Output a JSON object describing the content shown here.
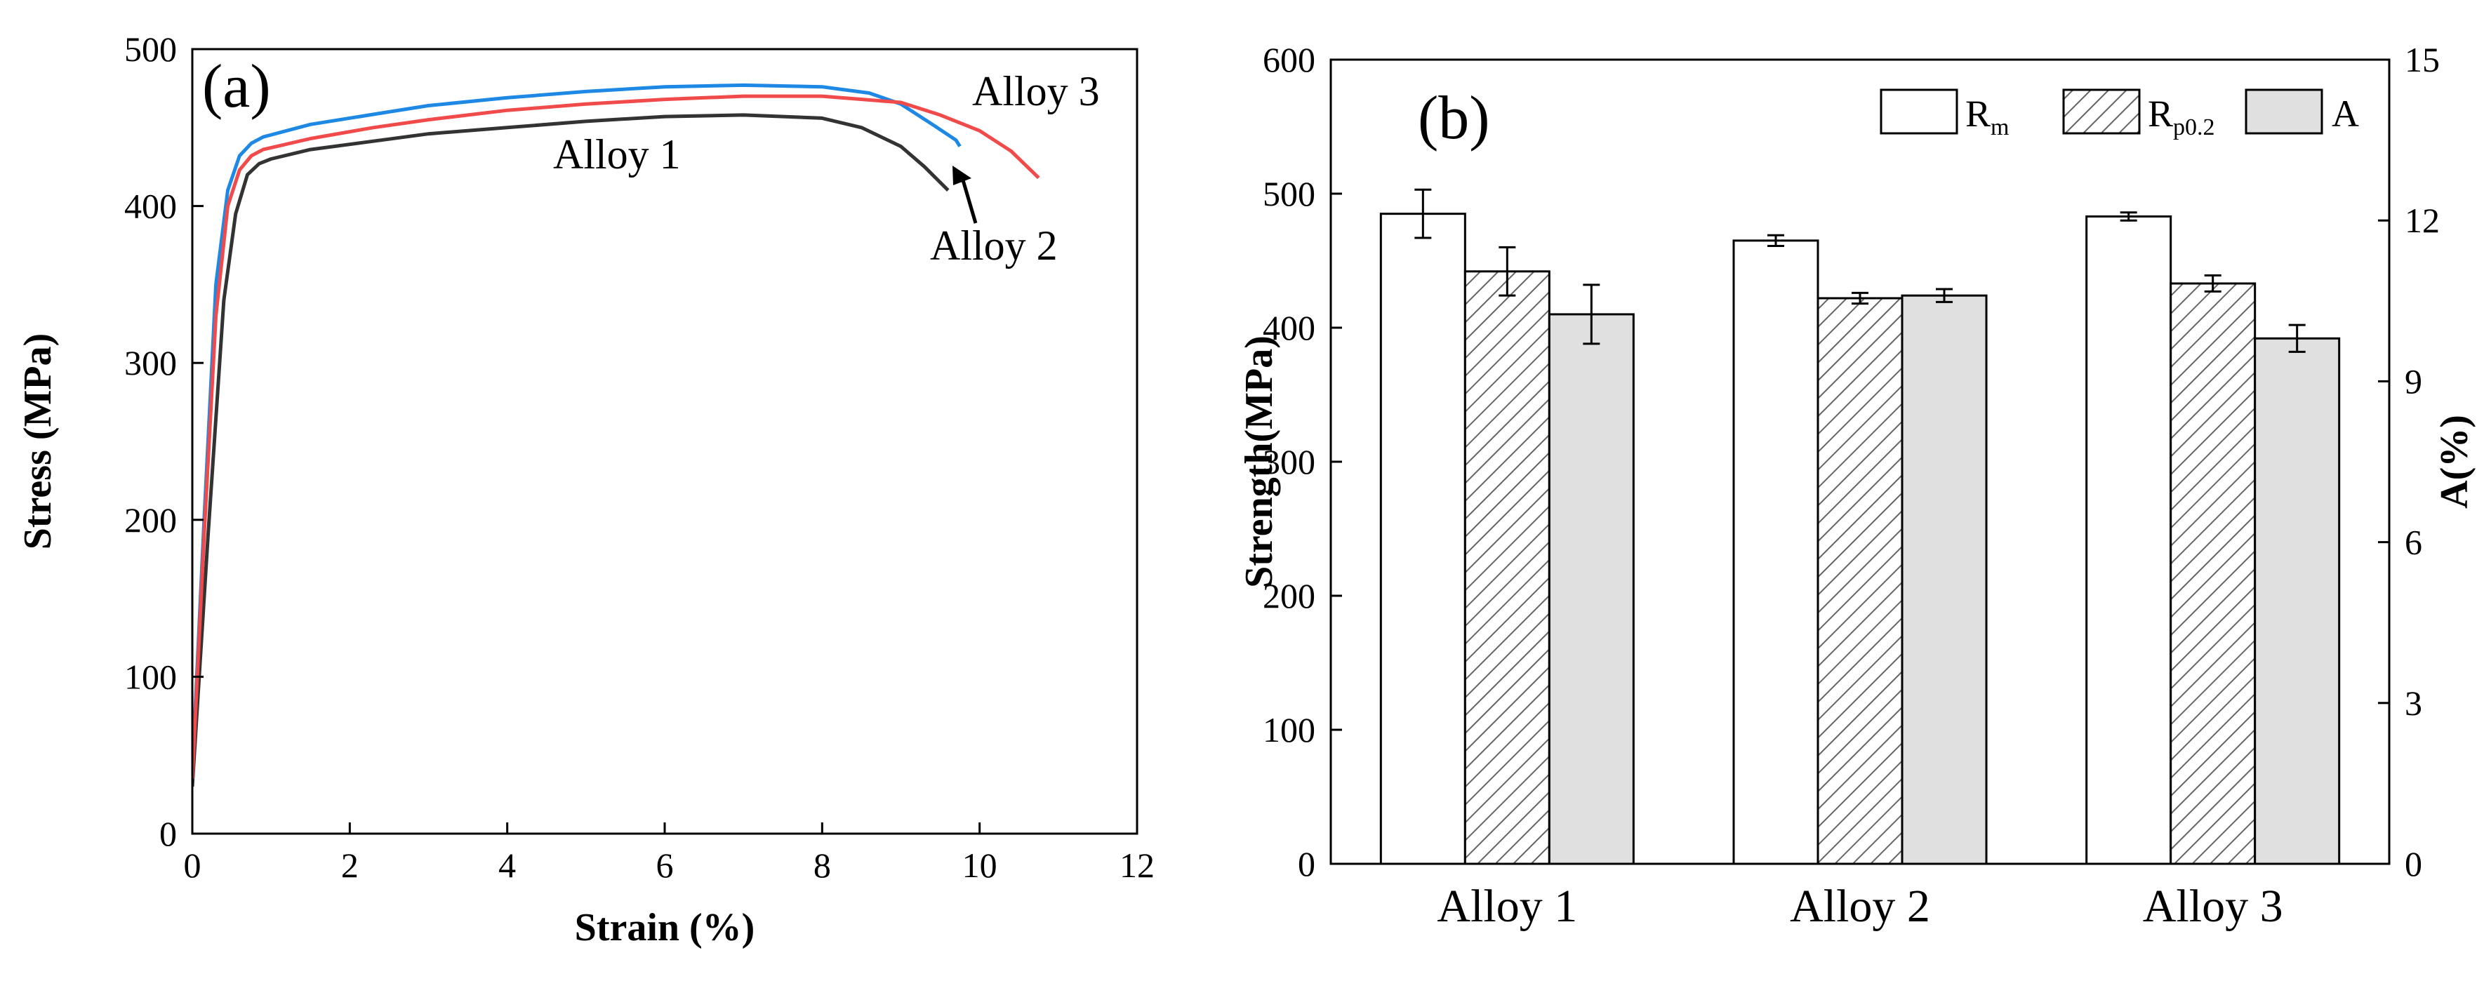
{
  "chart_data": [
    {
      "type": "line",
      "panel_label": "(a)",
      "xlabel": "Strain (%)",
      "ylabel": "Stress (MPa)",
      "xlim": [
        0,
        12
      ],
      "ylim": [
        0,
        500
      ],
      "xticks": [
        "0",
        "2",
        "4",
        "6",
        "8",
        "10",
        "12"
      ],
      "yticks": [
        "0",
        "100",
        "200",
        "300",
        "400",
        "500"
      ],
      "series": [
        {
          "name": "Alloy 1",
          "color": "#333333",
          "x": [
            0.0,
            0.2,
            0.4,
            0.55,
            0.7,
            0.85,
            1.0,
            1.5,
            2.4,
            3.0,
            4.0,
            5.0,
            6.0,
            7.0,
            8.0,
            8.5,
            9.0,
            9.3,
            9.6
          ],
          "y": [
            30,
            190,
            340,
            395,
            420,
            427,
            430,
            436,
            442,
            446,
            450,
            454,
            457,
            458,
            456,
            450,
            438,
            425,
            410
          ]
        },
        {
          "name": "Alloy 2",
          "color": "#1e88e5",
          "x": [
            0.0,
            0.15,
            0.3,
            0.45,
            0.6,
            0.75,
            0.9,
            1.5,
            2.5,
            3.0,
            4.0,
            5.0,
            6.0,
            7.0,
            8.0,
            8.6,
            9.0,
            9.4,
            9.7,
            9.75
          ],
          "y": [
            40,
            200,
            350,
            410,
            432,
            440,
            444,
            452,
            460,
            464,
            469,
            473,
            476,
            477,
            476,
            472,
            465,
            452,
            442,
            438
          ]
        },
        {
          "name": "Alloy 3",
          "color": "#f04a4a",
          "x": [
            0.0,
            0.15,
            0.3,
            0.45,
            0.6,
            0.75,
            0.9,
            1.5,
            2.3,
            3.0,
            4.0,
            5.0,
            6.0,
            7.0,
            8.0,
            9.0,
            9.5,
            10.0,
            10.4,
            10.75
          ],
          "y": [
            35,
            190,
            330,
            400,
            423,
            432,
            436,
            443,
            450,
            455,
            461,
            465,
            468,
            470,
            470,
            466,
            458,
            448,
            435,
            418
          ]
        }
      ],
      "annotations": [
        "Alloy 1",
        "Alloy 2",
        "Alloy 3"
      ]
    },
    {
      "type": "bar",
      "panel_label": "(b)",
      "categories": [
        "Alloy 1",
        "Alloy 2",
        "Alloy 3"
      ],
      "ylabel": "Strength(MPa)",
      "y2label": "A(%)",
      "ylim": [
        0,
        600
      ],
      "y2lim": [
        0,
        15
      ],
      "yticks": [
        "0",
        "100",
        "200",
        "300",
        "400",
        "500",
        "600"
      ],
      "y2ticks": [
        "0",
        "3",
        "6",
        "9",
        "12",
        "15"
      ],
      "legend": {
        "rm_main": "R",
        "rm_sub": "m",
        "rp_main": "R",
        "rp_sub": "p0.2",
        "a_label": "A",
        "position": "top-right"
      },
      "series": [
        {
          "name": "Rm",
          "axis": "left",
          "fill": "white",
          "values": [
            485,
            465,
            483
          ],
          "errors": [
            18,
            4,
            3
          ]
        },
        {
          "name": "Rp0.2",
          "axis": "left",
          "fill": "hatched",
          "values": [
            442,
            422,
            433
          ],
          "errors": [
            18,
            4,
            6
          ]
        },
        {
          "name": "A",
          "axis": "right",
          "fill": "#e0e0e0",
          "values": [
            10.25,
            10.6,
            9.8
          ],
          "errors": [
            0.55,
            0.12,
            0.25
          ]
        }
      ]
    }
  ]
}
